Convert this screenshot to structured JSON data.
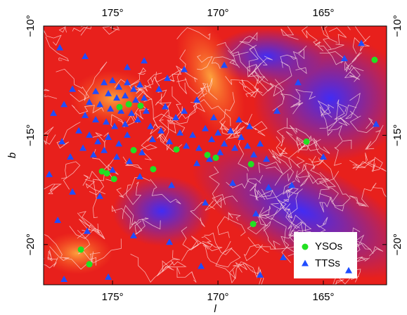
{
  "chart_data": {
    "type": "scatter",
    "xlabel": "l",
    "ylabel": "b",
    "xlim": [
      178.27,
      162.0
    ],
    "ylim": [
      -21.84,
      -10
    ],
    "xticks": [
      {
        "value": 175,
        "label": "175°"
      },
      {
        "value": 170,
        "label": "170°"
      },
      {
        "value": 165,
        "label": "165°"
      }
    ],
    "yticks": [
      {
        "value": -10,
        "label": "−10°"
      },
      {
        "value": -15,
        "label": "−15°"
      },
      {
        "value": -20,
        "label": "−20°"
      }
    ],
    "legend": "lower right",
    "series": [
      {
        "name": "YSOs",
        "color": "#22e022",
        "marker": "circle",
        "x": [
          162.57,
          174.67,
          174.23,
          173.67,
          174.0,
          175.5,
          175.27,
          174.93,
          173.07,
          171.97,
          170.5,
          170.1,
          168.43,
          165.8,
          168.33,
          176.5,
          176.1
        ],
        "values": [
          -11.55,
          -13.71,
          -13.58,
          -13.65,
          -15.68,
          -16.65,
          -16.74,
          -17.0,
          -16.55,
          -15.65,
          -15.9,
          -16.03,
          -16.32,
          -15.29,
          -19.06,
          -20.23,
          -20.9
        ]
      },
      {
        "name": "TTSs",
        "color": "#1f4dff",
        "marker": "triangle",
        "x": [
          175.4,
          175.0,
          174.7,
          174.3,
          174.0,
          173.7,
          175.8,
          175.2,
          174.8,
          174.4,
          173.9,
          173.5,
          176.1,
          175.6,
          175.1,
          174.6,
          174.1,
          173.4,
          176.3,
          175.8,
          175.3,
          174.9,
          174.4,
          173.8,
          173.2,
          176.9,
          177.3,
          177.8,
          172.8,
          172.5,
          174.3,
          173.5,
          172.4,
          176.6,
          176.1,
          175.7,
          175.2,
          174.7,
          174.3,
          176.4,
          175.9,
          175.4,
          174.8,
          174.2,
          173.6,
          173.1,
          172.7,
          172.3,
          171.8,
          171.5,
          171.2,
          170.9,
          170.6,
          170.3,
          170.0,
          169.7,
          169.4,
          169.2,
          168.9,
          168.6,
          168.3,
          168.0,
          167.7,
          169.9,
          170.4,
          171.0,
          171.6,
          171.0,
          170.2,
          169.0,
          168.5,
          172.0,
          177.4,
          177.0,
          175.0,
          177.5,
          176.3,
          171.6,
          169.7,
          166.2,
          163.2,
          164.0,
          162.5,
          165.0,
          166.5,
          167.6,
          168.2,
          169.3,
          170.6,
          172.2,
          173.7,
          175.6,
          176.9,
          177.6,
          176.2,
          174.0,
          172.3,
          170.8,
          168.0,
          166.9,
          163.8,
          177.3,
          175.2,
          178.0,
          167.2
        ],
        "values": [
          -12.6,
          -12.5,
          -12.8,
          -12.6,
          -12.9,
          -12.7,
          -13.0,
          -13.1,
          -13.3,
          -13.2,
          -13.4,
          -13.3,
          -13.5,
          -13.6,
          -13.8,
          -13.9,
          -14.0,
          -13.9,
          -14.1,
          -14.3,
          -14.4,
          -14.6,
          -14.5,
          -14.3,
          -14.6,
          -12.9,
          -13.6,
          -14.0,
          -12.9,
          -13.7,
          -11.9,
          -11.6,
          -12.4,
          -14.8,
          -15.0,
          -15.3,
          -15.1,
          -15.4,
          -15.0,
          -15.6,
          -15.9,
          -15.7,
          -16.0,
          -16.2,
          -15.8,
          -15.2,
          -14.8,
          -15.3,
          -14.9,
          -15.5,
          -15.0,
          -15.6,
          -14.7,
          -15.2,
          -14.9,
          -15.4,
          -14.8,
          -15.6,
          -15.1,
          -15.5,
          -15.9,
          -15.4,
          -16.1,
          -15.8,
          -16.1,
          -16.3,
          -13.9,
          -13.4,
          -14.2,
          -14.3,
          -14.6,
          -14.2,
          -15.3,
          -16.0,
          -16.6,
          -11.0,
          -11.4,
          -12.0,
          -11.8,
          -12.6,
          -10.8,
          -11.5,
          -14.5,
          -16.0,
          -17.3,
          -17.4,
          -18.6,
          -17.2,
          -18.1,
          -17.3,
          -16.9,
          -17.8,
          -17.6,
          -18.9,
          -19.4,
          -19.6,
          -19.9,
          -21.0,
          -21.4,
          -20.6,
          -21.2,
          -21.6,
          -21.5,
          -16.8,
          -13.9
        ]
      }
    ]
  }
}
